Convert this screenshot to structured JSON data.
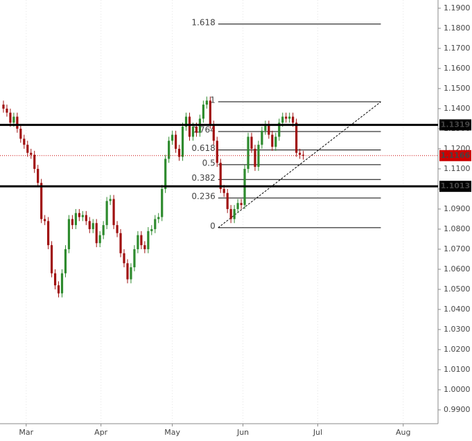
{
  "chart_data": {
    "type": "candlestick",
    "x": [
      0,
      1,
      2,
      3,
      4,
      5,
      6,
      7,
      8,
      9,
      10,
      11,
      12,
      13,
      14,
      15,
      16,
      17,
      18,
      19,
      20,
      21,
      22,
      23,
      24,
      25,
      26,
      27,
      28,
      29,
      30,
      31,
      32,
      33,
      34,
      35,
      36,
      37,
      38,
      39,
      40,
      41,
      42,
      43,
      44,
      45,
      46,
      47,
      48,
      49,
      50,
      51,
      52,
      53,
      54,
      55,
      56,
      57,
      58,
      59,
      60,
      61,
      62,
      63,
      64,
      65,
      66,
      67,
      68,
      69,
      70,
      71,
      72,
      73,
      74,
      75,
      76,
      77,
      78,
      79,
      80,
      81,
      82,
      83,
      84,
      85,
      86,
      87
    ],
    "open": [
      1.142,
      1.14,
      1.138,
      1.133,
      1.136,
      1.13,
      1.125,
      1.122,
      1.118,
      1.117,
      1.11,
      1.103,
      1.085,
      1.084,
      1.072,
      1.058,
      1.052,
      1.048,
      1.058,
      1.07,
      1.085,
      1.082,
      1.088,
      1.086,
      1.087,
      1.084,
      1.08,
      1.083,
      1.073,
      1.077,
      1.082,
      1.094,
      1.095,
      1.082,
      1.078,
      1.068,
      1.063,
      1.055,
      1.061,
      1.07,
      1.077,
      1.072,
      1.07,
      1.079,
      1.08,
      1.085,
      1.086,
      1.1,
      1.115,
      1.124,
      1.127,
      1.12,
      1.116,
      1.131,
      1.136,
      1.126,
      1.131,
      1.128,
      1.135,
      1.142,
      1.144,
      1.132,
      1.124,
      1.113,
      1.1,
      1.098,
      1.09,
      1.085,
      1.09,
      1.093,
      1.092,
      1.11,
      1.126,
      1.12,
      1.111,
      1.122,
      1.129,
      1.132,
      1.127,
      1.121,
      1.126,
      1.133,
      1.136,
      1.135,
      1.136,
      1.133,
      1.118,
      1.117
    ],
    "high": [
      1.144,
      1.142,
      1.14,
      1.138,
      1.138,
      1.132,
      1.127,
      1.124,
      1.12,
      1.119,
      1.112,
      1.105,
      1.087,
      1.086,
      1.074,
      1.06,
      1.054,
      1.06,
      1.072,
      1.087,
      1.087,
      1.09,
      1.09,
      1.089,
      1.089,
      1.086,
      1.085,
      1.085,
      1.079,
      1.084,
      1.096,
      1.097,
      1.097,
      1.084,
      1.08,
      1.07,
      1.065,
      1.063,
      1.072,
      1.079,
      1.079,
      1.074,
      1.081,
      1.082,
      1.087,
      1.088,
      1.102,
      1.117,
      1.126,
      1.129,
      1.129,
      1.122,
      1.133,
      1.138,
      1.138,
      1.133,
      1.133,
      1.137,
      1.144,
      1.146,
      1.146,
      1.134,
      1.126,
      1.115,
      1.102,
      1.1,
      1.092,
      1.092,
      1.095,
      1.095,
      1.112,
      1.128,
      1.128,
      1.122,
      1.124,
      1.131,
      1.134,
      1.134,
      1.129,
      1.128,
      1.135,
      1.138,
      1.138,
      1.138,
      1.138,
      1.135,
      1.12,
      1.119
    ],
    "low": [
      1.138,
      1.136,
      1.131,
      1.131,
      1.128,
      1.123,
      1.12,
      1.116,
      1.115,
      1.108,
      1.101,
      1.083,
      1.082,
      1.07,
      1.056,
      1.05,
      1.046,
      1.046,
      1.056,
      1.068,
      1.08,
      1.08,
      1.084,
      1.084,
      1.082,
      1.078,
      1.078,
      1.071,
      1.071,
      1.075,
      1.08,
      1.092,
      1.08,
      1.076,
      1.066,
      1.061,
      1.053,
      1.053,
      1.059,
      1.068,
      1.07,
      1.068,
      1.068,
      1.077,
      1.078,
      1.083,
      1.084,
      1.098,
      1.113,
      1.122,
      1.118,
      1.114,
      1.114,
      1.129,
      1.124,
      1.124,
      1.126,
      1.126,
      1.133,
      1.14,
      1.13,
      1.122,
      1.111,
      1.098,
      1.096,
      1.088,
      1.083,
      1.083,
      1.088,
      1.09,
      1.09,
      1.108,
      1.118,
      1.109,
      1.109,
      1.12,
      1.127,
      1.125,
      1.119,
      1.119,
      1.124,
      1.131,
      1.133,
      1.133,
      1.131,
      1.116,
      1.115,
      1.1146
    ],
    "close": [
      1.14,
      1.138,
      1.133,
      1.136,
      1.13,
      1.125,
      1.122,
      1.118,
      1.117,
      1.11,
      1.103,
      1.085,
      1.084,
      1.072,
      1.058,
      1.052,
      1.048,
      1.058,
      1.07,
      1.085,
      1.082,
      1.088,
      1.086,
      1.087,
      1.084,
      1.08,
      1.083,
      1.073,
      1.077,
      1.082,
      1.094,
      1.095,
      1.082,
      1.078,
      1.068,
      1.063,
      1.055,
      1.061,
      1.07,
      1.077,
      1.072,
      1.07,
      1.079,
      1.08,
      1.085,
      1.086,
      1.1,
      1.115,
      1.124,
      1.127,
      1.12,
      1.116,
      1.131,
      1.136,
      1.126,
      1.131,
      1.128,
      1.135,
      1.142,
      1.144,
      1.132,
      1.124,
      1.113,
      1.1,
      1.098,
      1.09,
      1.085,
      1.09,
      1.093,
      1.092,
      1.11,
      1.126,
      1.12,
      1.111,
      1.122,
      1.129,
      1.132,
      1.127,
      1.121,
      1.126,
      1.133,
      1.136,
      1.135,
      1.136,
      1.133,
      1.118,
      1.117,
      1.1166
    ],
    "up_color": "#2e8b2e",
    "down_color": "#a01010",
    "xlim": [
      -1,
      126.1
    ],
    "xticks": [
      {
        "value": 6.6,
        "label": "Mar"
      },
      {
        "value": 28.3,
        "label": "Apr"
      },
      {
        "value": 49,
        "label": "May"
      },
      {
        "value": 69.5,
        "label": "Jun"
      },
      {
        "value": 91.2,
        "label": "Jul"
      },
      {
        "value": 116,
        "label": "Aug"
      }
    ],
    "ylim": [
      0.9831,
      1.1941
    ],
    "yticks": [
      {
        "value": 0.99,
        "label": "0.9900"
      },
      {
        "value": 1.0,
        "label": "1.0000"
      },
      {
        "value": 1.01,
        "label": "1.0100"
      },
      {
        "value": 1.02,
        "label": "1.0200"
      },
      {
        "value": 1.03,
        "label": "1.0300"
      },
      {
        "value": 1.04,
        "label": "1.0400"
      },
      {
        "value": 1.05,
        "label": "1.0500"
      },
      {
        "value": 1.06,
        "label": "1.0600"
      },
      {
        "value": 1.07,
        "label": "1.0700"
      },
      {
        "value": 1.08,
        "label": "1.0800"
      },
      {
        "value": 1.09,
        "label": "1.0900"
      },
      {
        "value": 1.1,
        "label": "1.1000"
      },
      {
        "value": 1.11,
        "label": "1.1100"
      },
      {
        "value": 1.12,
        "label": "1.1200"
      },
      {
        "value": 1.13,
        "label": "1.1300"
      },
      {
        "value": 1.14,
        "label": "1.1400"
      },
      {
        "value": 1.15,
        "label": "1.1500"
      },
      {
        "value": 1.16,
        "label": "1.1600"
      },
      {
        "value": 1.17,
        "label": "1.1700"
      },
      {
        "value": 1.18,
        "label": "1.1800"
      },
      {
        "value": 1.19,
        "label": "1.1900"
      }
    ],
    "grid": true,
    "fib_x": [
      62.3,
      109.5
    ],
    "fib_levels": [
      {
        "label": "1.618",
        "value": 1.1821
      },
      {
        "label": "1",
        "value": 1.1434
      },
      {
        "label": "0.764",
        "value": 1.1286
      },
      {
        "label": "0.618",
        "value": 1.1194
      },
      {
        "label": "0.5",
        "value": 1.1121
      },
      {
        "label": "0.382",
        "value": 1.1047
      },
      {
        "label": "0.236",
        "value": 1.0955
      },
      {
        "label": "0",
        "value": 1.0807
      }
    ],
    "trendline": {
      "x": [
        62.3,
        109.5
      ],
      "y": [
        1.0807,
        1.1434
      ]
    },
    "hlines": [
      {
        "value": 1.1319,
        "label": "1.1319"
      },
      {
        "value": 1.1013,
        "label": "1.1013"
      }
    ],
    "price": {
      "value": 1.1166,
      "label": "1.1166",
      "color": "#cc0000"
    }
  }
}
